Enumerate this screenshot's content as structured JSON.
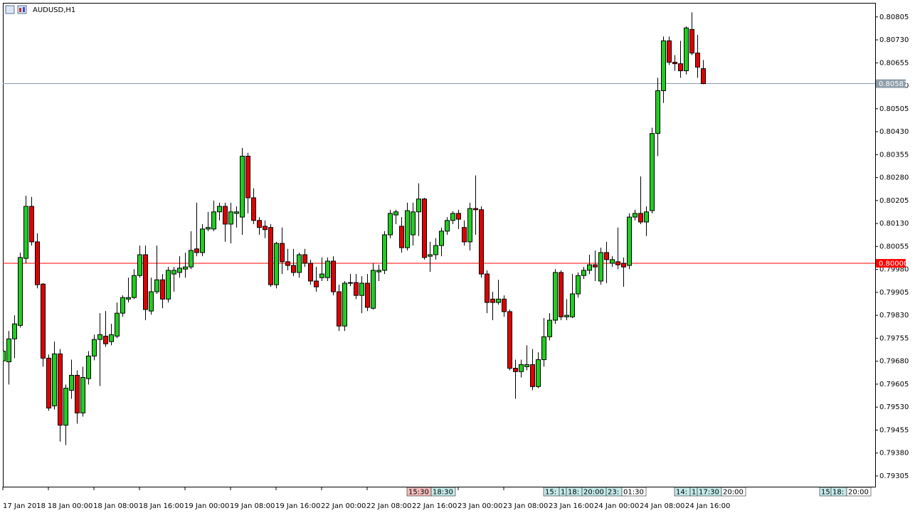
{
  "chart_data": {
    "type": "candlestick",
    "title": "AUDUSD,H1",
    "up_color": "#22cc22",
    "down_color": "#e00000",
    "categories": [
      "17 Jan 2018",
      null,
      null,
      null,
      null,
      null,
      null,
      null,
      "18 Jan 00:00",
      null,
      null,
      null,
      null,
      null,
      null,
      null,
      "18 Jan 08:00",
      null,
      null,
      null,
      null,
      null,
      null,
      null,
      "18 Jan 16:00",
      null,
      null,
      null,
      null,
      null,
      null,
      null,
      "19 Jan 00:00",
      null,
      null,
      null,
      null,
      null,
      null,
      null,
      "19 Jan 08:00",
      null,
      null,
      null,
      null,
      null,
      null,
      null,
      "19 Jan 16:00",
      null,
      null,
      null,
      null,
      null,
      null,
      null,
      "22 Jan 00:00",
      null,
      null,
      null,
      null,
      null,
      null,
      null,
      "22 Jan 08:00",
      null,
      null,
      null,
      null,
      null,
      null,
      null,
      "22 Jan 16:00",
      null,
      null,
      null,
      null,
      null,
      null,
      null,
      "23 Jan 00:00",
      null,
      null,
      null,
      null,
      null,
      null,
      null,
      "23 Jan 08:00",
      null,
      null,
      null,
      null,
      null,
      null,
      null,
      "23 Jan 16:00",
      null,
      null,
      null,
      null,
      null,
      null,
      null,
      "24 Jan 00:00",
      null,
      null,
      null,
      null,
      null,
      null,
      null,
      "24 Jan 08:00",
      null,
      null,
      null,
      null,
      null,
      null,
      null,
      "24 Jan 16:00",
      null,
      null,
      null
    ],
    "open": [
      0.79681,
      0.79678,
      0.79753,
      0.79797,
      0.80016,
      0.80186,
      0.8007,
      0.79932,
      0.7969,
      0.79534,
      0.79704,
      0.79471,
      0.79585,
      0.79634,
      0.79511,
      0.79623,
      0.79697,
      0.79751,
      0.79762,
      0.79744,
      0.79762,
      0.79837,
      0.79883,
      0.79888,
      0.7996,
      0.80028,
      0.79844,
      0.79907,
      0.79946,
      0.79883,
      0.79965,
      0.7997,
      0.79981,
      0.79988,
      0.80047,
      0.80035,
      0.80112,
      0.80112,
      0.80168,
      0.80186,
      0.80128,
      0.80163,
      0.80151,
      0.8035,
      0.80214,
      0.8014,
      0.80121,
      0.80117,
      0.7993,
      0.80065,
      0.80005,
      0.79993,
      0.7997,
      0.80028,
      0.8,
      0.79942,
      0.79953,
      0.79953,
      0.80007,
      0.79907,
      0.79795,
      0.79935,
      0.79937,
      0.79895,
      0.79935,
      0.79853,
      0.79972,
      0.79977,
      0.80093,
      0.80158,
      0.80121,
      0.80051,
      0.80093,
      0.80168,
      0.8021,
      0.80023,
      0.80028,
      0.80058,
      0.80105,
      0.8014,
      0.80163,
      0.80117,
      0.8007,
      0.80179,
      0.80175,
      0.79965,
      0.79883,
      0.79872,
      0.79883,
      0.79842,
      0.79657,
      0.79646,
      0.79662,
      0.79669,
      0.79597,
      0.79685,
      0.7976,
      0.79814,
      0.7997,
      0.79825,
      0.79825,
      0.799,
      0.7996,
      0.79977,
      0.79995,
      0.79942,
      0.80035,
      0.8,
      0.80005,
      0.8,
      0.79993,
      0.80151,
      0.80163,
      0.80135,
      0.80172,
      0.80424,
      0.80564,
      0.80727,
      0.80657,
      0.80652,
      0.80629,
      0.80764,
      0.80687,
      0.80636
    ],
    "high": [
      0.7972,
      0.79779,
      0.7983,
      0.80035,
      0.80221,
      0.80217,
      0.80098,
      0.79935,
      0.79702,
      0.79744,
      0.7972,
      0.79604,
      0.79685,
      0.7965,
      0.79662,
      0.79713,
      0.79767,
      0.79837,
      0.79844,
      0.79802,
      0.79872,
      0.79895,
      0.79953,
      0.79981,
      0.80058,
      0.80058,
      0.79953,
      0.80058,
      0.79965,
      0.79988,
      0.79988,
      0.80023,
      0.80035,
      0.80105,
      0.80198,
      0.80128,
      0.80168,
      0.80205,
      0.80198,
      0.80198,
      0.80198,
      0.80186,
      0.80377,
      0.80361,
      0.80245,
      0.80151,
      0.8014,
      0.80128,
      0.8007,
      0.80117,
      0.80047,
      0.80047,
      0.80035,
      0.80047,
      0.80012,
      0.79988,
      0.80019,
      0.80019,
      0.80023,
      0.7993,
      0.79942,
      0.79965,
      0.79965,
      0.79958,
      0.79965,
      0.8,
      0.79995,
      0.80105,
      0.80175,
      0.80175,
      0.80151,
      0.80198,
      0.80198,
      0.80261,
      0.80214,
      0.8007,
      0.80082,
      0.80117,
      0.80151,
      0.8017,
      0.80175,
      0.8014,
      0.80198,
      0.80287,
      0.80186,
      0.79977,
      0.79907,
      0.79946,
      0.79895,
      0.79849,
      0.79685,
      0.79685,
      0.79732,
      0.7972,
      0.79709,
      0.79821,
      0.79837,
      0.79981,
      0.79977,
      0.79883,
      0.79965,
      0.7997,
      0.79988,
      0.80028,
      0.80042,
      0.80051,
      0.8007,
      0.80023,
      0.80117,
      0.80019,
      0.80163,
      0.80175,
      0.80284,
      0.80186,
      0.80443,
      0.80606,
      0.80741,
      0.80741,
      0.8068,
      0.80727,
      0.80774,
      0.8082,
      0.80746,
      0.80664
    ],
    "low": [
      0.79674,
      0.79604,
      0.7969,
      0.7979,
      0.8,
      0.80058,
      0.79918,
      0.79662,
      0.79518,
      0.79522,
      0.79417,
      0.79406,
      0.79557,
      0.79476,
      0.79499,
      0.79604,
      0.79683,
      0.79599,
      0.79727,
      0.79732,
      0.79755,
      0.79825,
      0.79872,
      0.79883,
      0.79953,
      0.79814,
      0.79832,
      0.799,
      0.79853,
      0.79872,
      0.79907,
      0.79953,
      0.79953,
      0.79981,
      0.80023,
      0.80023,
      0.80105,
      0.80105,
      0.8014,
      0.8007,
      0.80065,
      0.80117,
      0.80093,
      0.80163,
      0.80128,
      0.80093,
      0.80082,
      0.79923,
      0.79918,
      0.79965,
      0.79977,
      0.79958,
      0.79953,
      0.79988,
      0.7993,
      0.79907,
      0.79942,
      0.79942,
      0.79895,
      0.79779,
      0.79779,
      0.79925,
      0.79883,
      0.79837,
      0.79844,
      0.79849,
      0.79942,
      0.79965,
      0.80082,
      0.80128,
      0.80035,
      0.80042,
      0.80058,
      0.80089,
      0.80012,
      0.79972,
      0.80012,
      0.80023,
      0.80093,
      0.80128,
      0.80112,
      0.80058,
      0.80042,
      0.80093,
      0.79953,
      0.79837,
      0.79814,
      0.79865,
      0.79825,
      0.7965,
      0.79557,
      0.79627,
      0.7965,
      0.79585,
      0.79592,
      0.79662,
      0.79748,
      0.79802,
      0.79814,
      0.79814,
      0.79821,
      0.79888,
      0.79949,
      0.79965,
      0.79942,
      0.7993,
      0.79935,
      0.79988,
      0.79981,
      0.79923,
      0.79981,
      0.8014,
      0.80128,
      0.80089,
      0.80163,
      0.8035,
      0.80524,
      0.80648,
      0.80629,
      0.80606,
      0.80617,
      0.8068,
      0.80606,
      0.80585
    ],
    "close": [
      0.79713,
      0.79753,
      0.79802,
      0.80019,
      0.80186,
      0.8007,
      0.7993,
      0.7969,
      0.79527,
      0.79704,
      0.79471,
      0.79592,
      0.79634,
      0.79511,
      0.79627,
      0.79697,
      0.79751,
      0.79767,
      0.79737,
      0.79767,
      0.79837,
      0.79888,
      0.79888,
      0.7996,
      0.80028,
      0.79849,
      0.79907,
      0.79946,
      0.79883,
      0.79977,
      0.79977,
      0.79984,
      0.79988,
      0.80042,
      0.80035,
      0.80112,
      0.80117,
      0.80168,
      0.80186,
      0.80128,
      0.80168,
      0.80168,
      0.8035,
      0.80214,
      0.8014,
      0.80117,
      0.8011,
      0.7993,
      0.80065,
      0.80005,
      0.79993,
      0.7997,
      0.80028,
      0.8,
      0.79942,
      0.79923,
      0.79965,
      0.80007,
      0.79907,
      0.79795,
      0.79935,
      0.79937,
      0.79895,
      0.79935,
      0.79856,
      0.79977,
      0.79977,
      0.80093,
      0.80163,
      0.80168,
      0.80051,
      0.80172,
      0.80168,
      0.8021,
      0.80019,
      0.80028,
      0.80058,
      0.80105,
      0.8014,
      0.80163,
      0.80144,
      0.8007,
      0.80179,
      0.80175,
      0.79965,
      0.79872,
      0.79872,
      0.79883,
      0.79842,
      0.79657,
      0.79646,
      0.79669,
      0.79669,
      0.79597,
      0.79685,
      0.7976,
      0.79814,
      0.7997,
      0.79825,
      0.7983,
      0.799,
      0.7996,
      0.79977,
      0.79995,
      0.79988,
      0.80035,
      0.80012,
      0.80012,
      0.79995,
      0.79988,
      0.80151,
      0.80163,
      0.80135,
      0.80168,
      0.80424,
      0.80564,
      0.80727,
      0.80657,
      0.80652,
      0.80629,
      0.80769,
      0.80687,
      0.80641,
      0.80587
    ],
    "ylim": [
      0.7927,
      0.80851
    ],
    "yticks": [
      0.80805,
      {
        "value": 0.8073,
        "label": "0.80730"
      },
      0.80655,
      {
        "value": 0.8058,
        "label": "0.80580"
      },
      0.80505,
      {
        "value": 0.8043,
        "label": "0.80430"
      },
      0.80355,
      {
        "value": 0.8028,
        "label": "0.80280"
      },
      0.80205,
      {
        "value": 0.8013,
        "label": "0.80130"
      },
      0.80055,
      {
        "value": 0.7998,
        "label": "0.79980"
      },
      0.79905,
      {
        "value": 0.7983,
        "label": "0.79830"
      },
      0.79755,
      {
        "value": 0.7968,
        "label": "0.79680"
      },
      0.79605,
      {
        "value": 0.7953,
        "label": "0.79530"
      },
      0.79455,
      {
        "value": 0.7938,
        "label": "0.79380"
      },
      0.79305
    ],
    "hlines": [
      {
        "value": 0.80587,
        "label": "0.80587",
        "color": "#8c9ca8"
      },
      {
        "value": 0.8,
        "label": "0.80000",
        "color": "#ff0000"
      }
    ],
    "calendar": [
      [
        "15:30",
        "18:30"
      ],
      [
        "15:",
        "1",
        "18:",
        "20:00",
        "23:",
        "01:30"
      ],
      [
        "14:",
        "1",
        "17:30",
        "20:00"
      ],
      [
        "15",
        "18:",
        "20:00"
      ]
    ]
  }
}
